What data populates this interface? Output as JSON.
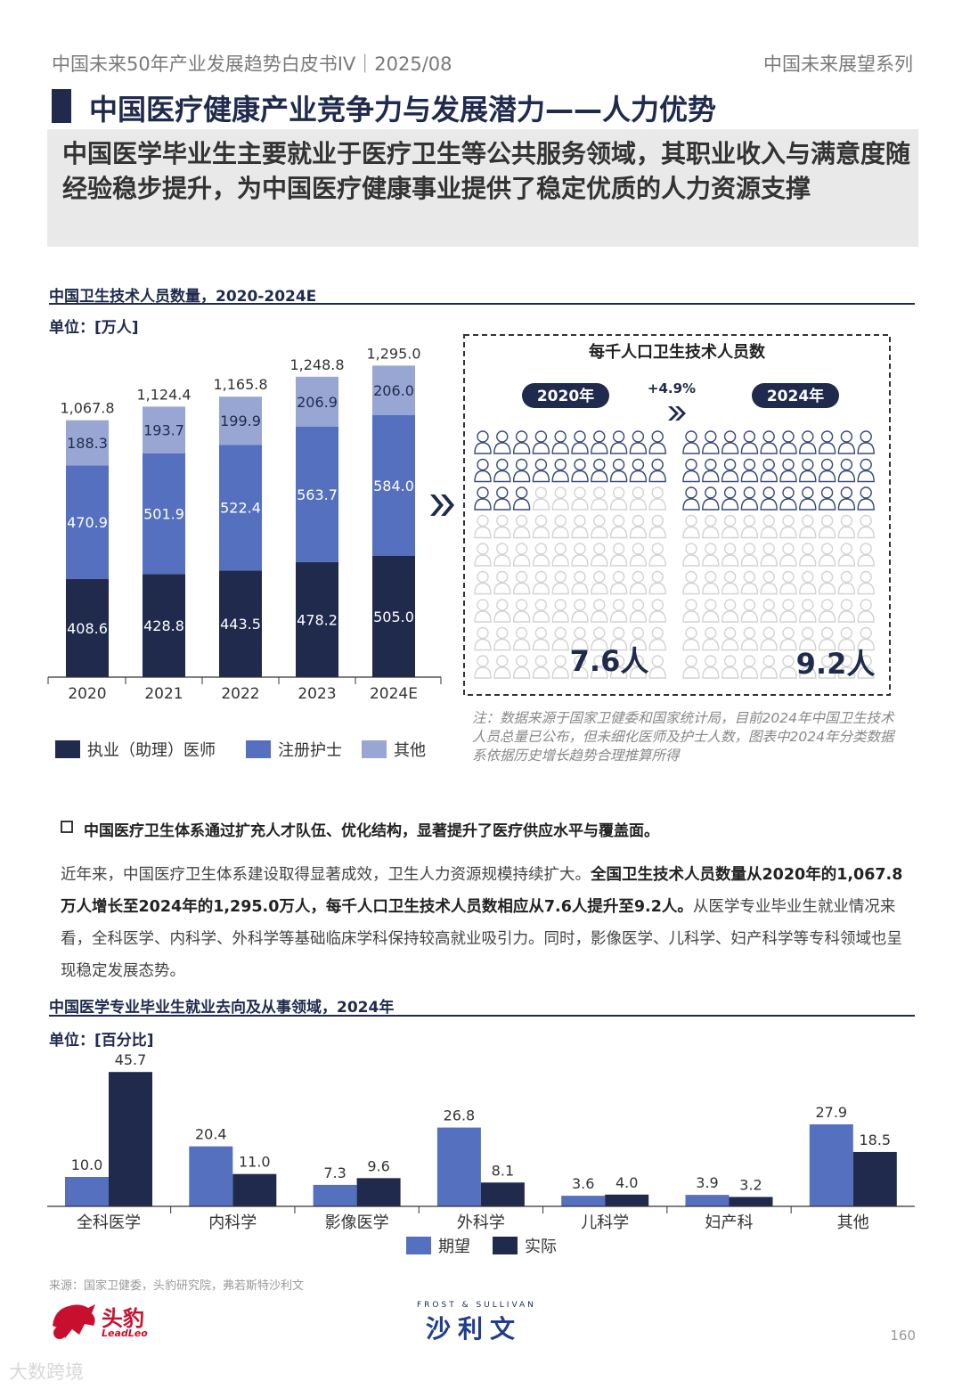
{
  "header": {
    "left": "中国未来50年产业发展趋势白皮书IV｜2025/08",
    "right": "中国未来展望系列"
  },
  "title": "中国医疗健康产业竞争力与发展潜力——人力优势",
  "subtitle": "中国医学毕业生主要就业于医疗卫生等公共服务领域，其职业收入与满意度随经验稳步提升，为中国医疗健康事业提供了稳定优质的人力资源支撑",
  "chart1": {
    "section_title": "中国卫生技术人员数量，2020-2024E",
    "unit": "单位：[万人]"
  },
  "per_thousand": {
    "title": "每千人口卫生技术人员数",
    "year_a": "2020年",
    "year_b": "2024年",
    "growth": "+4.9%",
    "value_a": "7.6人",
    "value_b": "9.2人",
    "filled_a": 23,
    "filled_b": 30
  },
  "note": "注：数据来源于国家卫健委和国家统计局，目前2024年中国卫生技术人员总量已公布，但未细化医师及护士人数，图表中2024年分类数据系依据历史增长趋势合理推算所得",
  "bullet": "中国医疗卫生体系通过扩充人才队伍、优化结构，显著提升了医疗供应水平与覆盖面。",
  "paragraph": {
    "p1": "近年来，中国医疗卫生体系建设取得显著成效，卫生人力资源规模持续扩大。",
    "p2": "全国卫生技术人员数量从2020年的1,067.8万人增长至2024年的1,295.0万人，每千人口卫生技术人员数相应从7.6人提升至9.2人。",
    "p3": "从医学专业毕业生就业情况来看，全科医学、内科学、外科学等基础临床学科保持较高就业吸引力。同时，影像医学、儿科学、妇产科学等专科领域也呈现稳定发展态势。"
  },
  "chart2": {
    "section_title": "中国医学专业毕业生就业去向及从事领域，2024年",
    "unit": "单位：[百分比]"
  },
  "source": "来源：国家卫健委，头豹研究院，弗若斯特沙利文",
  "page_number": "160",
  "brand": {
    "leadleo_cn": "头豹",
    "leadleo_en": "LeadLeo",
    "fs_en": "FROST & SULLIVAN",
    "fs_cn": "沙利文"
  },
  "watermark": "大数跨境",
  "colors": {
    "dark": "#1f2a4d",
    "mid": "#5470be",
    "light": "#98a6d3"
  },
  "chart_data": [
    {
      "type": "bar",
      "stacked": true,
      "categories": [
        "2020",
        "2021",
        "2022",
        "2023",
        "2024E"
      ],
      "series": [
        {
          "name": "执业（助理）医师",
          "values": [
            408.6,
            428.8,
            443.5,
            478.2,
            505.0
          ]
        },
        {
          "name": "注册护士",
          "values": [
            470.9,
            501.9,
            522.4,
            563.7,
            584.0
          ]
        },
        {
          "name": "其他",
          "values": [
            188.3,
            193.7,
            199.9,
            206.9,
            206.0
          ]
        }
      ],
      "totals": [
        "1,067.8",
        "1,124.4",
        "1,165.8",
        "1,248.8",
        "1,295.0"
      ],
      "legend": "bottom"
    },
    {
      "type": "bar",
      "categories": [
        "全科医学",
        "内科学",
        "影像医学",
        "外科学",
        "儿科学",
        "妇产科",
        "其他"
      ],
      "series": [
        {
          "name": "期望",
          "values": [
            10.0,
            20.4,
            7.3,
            26.8,
            3.6,
            3.9,
            27.9
          ]
        },
        {
          "name": "实际",
          "values": [
            45.7,
            11.0,
            9.6,
            8.1,
            4.0,
            3.2,
            18.5
          ]
        }
      ],
      "legend": "bottom"
    }
  ]
}
